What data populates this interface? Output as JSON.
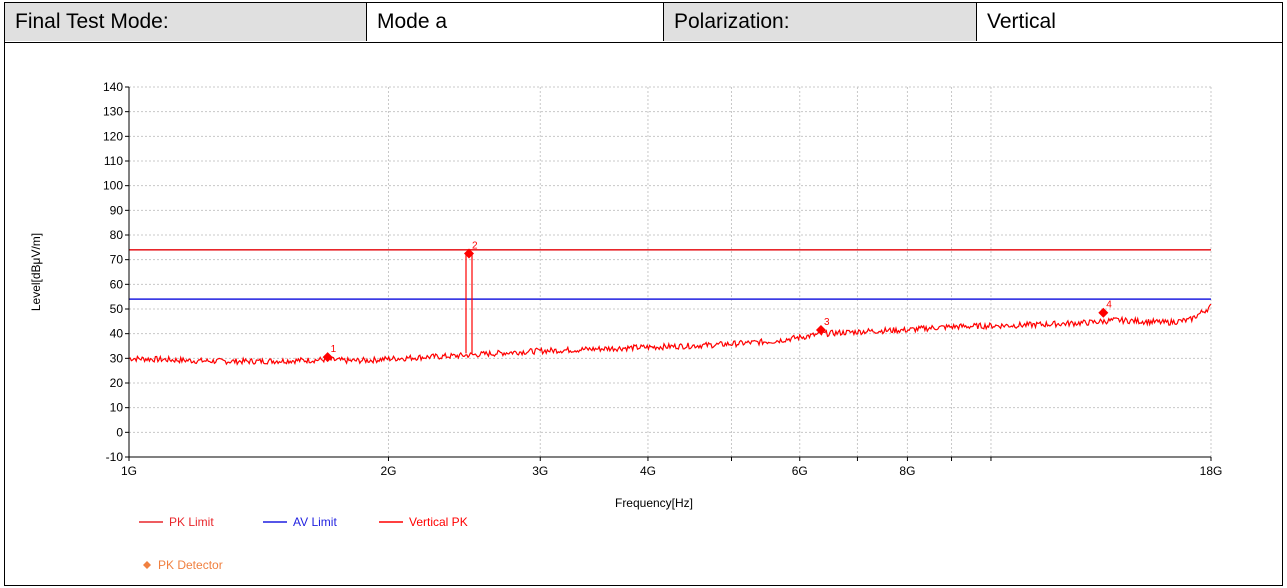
{
  "header": {
    "mode_label": "Final Test Mode:",
    "mode_value": "Mode a",
    "pol_label": "Polarization:",
    "pol_value": "Vertical"
  },
  "colors": {
    "pk_limit": "#e8262b",
    "av_limit": "#1f1fe0",
    "trace": "#ff0000",
    "marker": "#ff0000",
    "detector_legend": "#f08040",
    "grid": "#c8c8c8",
    "header_bg": "#e0e0e0"
  },
  "chart_data": {
    "type": "line",
    "xscale": "log",
    "xlabel": "Frequency[Hz]",
    "ylabel": "Level[dBμV/m]",
    "xlim": [
      1000000000,
      18000000000
    ],
    "ylim": [
      -10,
      140
    ],
    "grid": true,
    "y_ticks": [
      -10,
      0,
      10,
      20,
      30,
      40,
      50,
      60,
      70,
      80,
      90,
      100,
      110,
      120,
      130,
      140
    ],
    "x_tick_labels": [
      {
        "value": 1000000000,
        "label": "1G"
      },
      {
        "value": 2000000000,
        "label": "2G"
      },
      {
        "value": 3000000000,
        "label": "3G"
      },
      {
        "value": 4000000000,
        "label": "4G"
      },
      {
        "value": 6000000000,
        "label": "6G"
      },
      {
        "value": 8000000000,
        "label": "8G"
      },
      {
        "value": 18000000000,
        "label": "18G"
      }
    ],
    "x_grid": [
      1000000000,
      2000000000,
      3000000000,
      4000000000,
      5000000000,
      6000000000,
      7000000000,
      8000000000,
      9000000000,
      10000000000,
      18000000000
    ],
    "limits": [
      {
        "name": "PK Limit",
        "value": 74,
        "color": "#e8262b"
      },
      {
        "name": "AV Limit",
        "value": 54,
        "color": "#1f1fe0"
      }
    ],
    "series": [
      {
        "name": "Vertical PK",
        "color": "#ff0000",
        "x": [
          1000000000,
          1100000000,
          1200000000,
          1300000000,
          1400000000,
          1500000000,
          1600000000,
          1700000000,
          1800000000,
          1900000000,
          2000000000,
          2200000000,
          2400000000,
          2600000000,
          2800000000,
          3000000000,
          3300000000,
          3600000000,
          4000000000,
          4400000000,
          4800000000,
          5200000000,
          5600000000,
          6000000000,
          6400000000,
          6800000000,
          7200000000,
          7600000000,
          8000000000,
          8500000000,
          9000000000,
          10000000000,
          11000000000,
          12000000000,
          13000000000,
          14000000000,
          15000000000,
          16000000000,
          17000000000,
          18000000000
        ],
        "y": [
          30,
          29.5,
          29,
          28.8,
          28.8,
          29,
          29.2,
          29.5,
          29,
          29.2,
          29.8,
          30.5,
          31,
          31.8,
          32.5,
          33,
          33.5,
          34,
          34.5,
          35,
          35.5,
          36.2,
          37,
          38.5,
          40,
          40.5,
          41,
          41.3,
          41.5,
          42.3,
          42.8,
          43.2,
          43.5,
          44,
          44.5,
          45.5,
          45,
          44.5,
          45.5,
          51
        ]
      }
    ],
    "spike": {
      "x": 2480000000,
      "y": 72.5
    },
    "markers": [
      {
        "label": "1",
        "x": 1700000000,
        "y": 30.5
      },
      {
        "label": "2",
        "x": 2480000000,
        "y": 72.5
      },
      {
        "label": "3",
        "x": 6350000000,
        "y": 41.5
      },
      {
        "label": "4",
        "x": 13500000000,
        "y": 48.5
      }
    ],
    "legend": [
      {
        "name": "PK Limit",
        "color": "#e8262b",
        "kind": "line"
      },
      {
        "name": "AV Limit",
        "color": "#1f1fe0",
        "kind": "line"
      },
      {
        "name": "Vertical PK",
        "color": "#ff0000",
        "kind": "line"
      },
      {
        "name": "PK Detector",
        "color": "#f08040",
        "kind": "diamond"
      }
    ]
  }
}
